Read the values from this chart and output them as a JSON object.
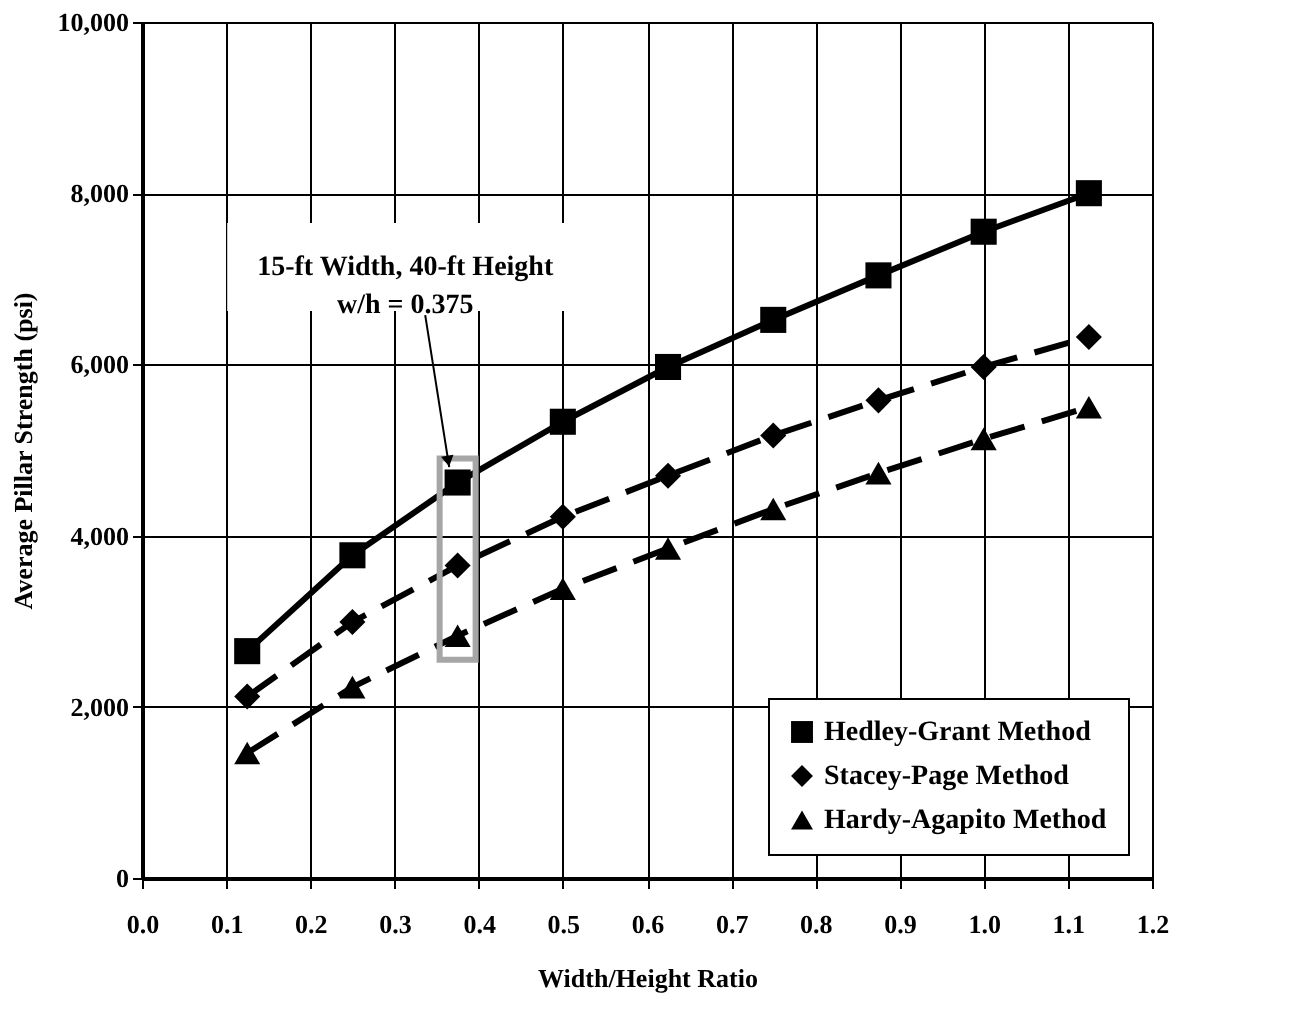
{
  "chart_data": {
    "type": "line",
    "xlabel": "Width/Height Ratio",
    "ylabel": "Average Pillar Strength (psi)",
    "x": [
      0.125,
      0.25,
      0.375,
      0.5,
      0.625,
      0.75,
      0.875,
      1.0,
      1.125
    ],
    "series": [
      {
        "name": "Hedley-Grant Method",
        "color": "#000000",
        "marker": "square",
        "line_style": "solid",
        "values": [
          2650,
          3770,
          4620,
          5330,
          5970,
          6520,
          7040,
          7550,
          8000
        ]
      },
      {
        "name": "Stacey-Page Method",
        "color": "#000000",
        "marker": "diamond",
        "line_style": "dashed",
        "values": [
          2120,
          2990,
          3650,
          4220,
          4700,
          5170,
          5580,
          5970,
          6320
        ]
      },
      {
        "name": "Hardy-Agapito Method",
        "color": "#000000",
        "marker": "triangle",
        "line_style": "dashed",
        "values": [
          1460,
          2230,
          2830,
          3380,
          3850,
          4310,
          4730,
          5130,
          5500
        ]
      }
    ],
    "xlim": [
      0,
      1.2
    ],
    "xticks": [
      {
        "value": 0,
        "label": "0.0"
      },
      0.1,
      0.2,
      0.3,
      0.4,
      0.5,
      0.6,
      0.7,
      0.8,
      0.9,
      {
        "value": 1,
        "label": "1.0"
      },
      1.1,
      1.2
    ],
    "ylim": [
      0,
      10000
    ],
    "yticks": [
      {
        "value": 0,
        "label": "0"
      },
      {
        "value": 2000,
        "label": "2,000"
      },
      {
        "value": 4000,
        "label": "4,000"
      },
      {
        "value": 6000,
        "label": "6,000"
      },
      {
        "value": 8000,
        "label": "8,000"
      },
      {
        "value": 10000,
        "label": "10,000"
      }
    ],
    "grid": true,
    "legend": "bottom right",
    "annotations": [
      {
        "text": "15-ft Width, 40-ft Height\nw/h = 0.375",
        "x": 0.365,
        "y": 4800
      }
    ]
  }
}
